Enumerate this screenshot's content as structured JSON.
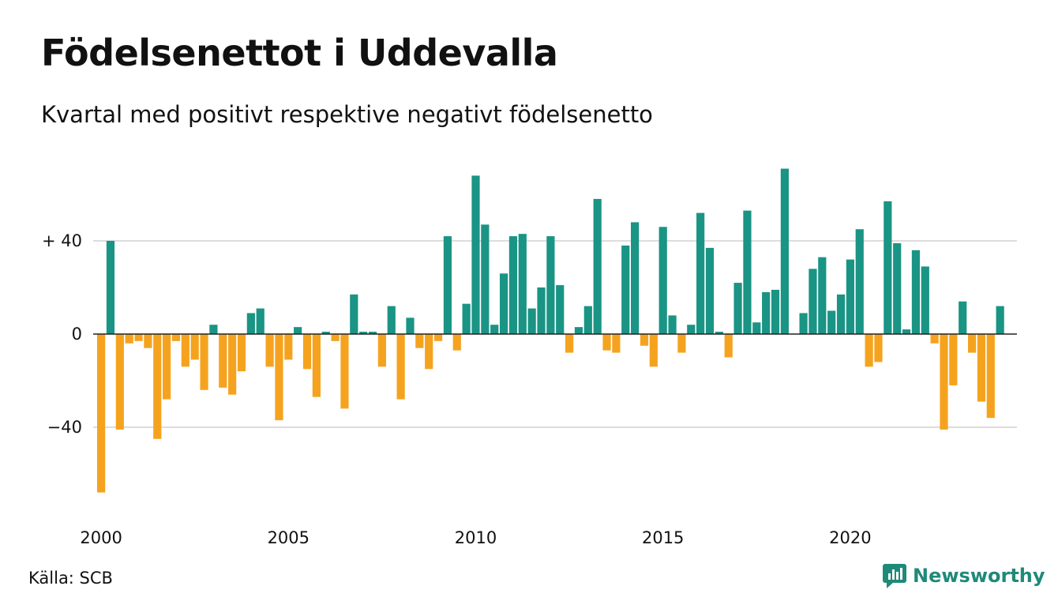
{
  "title": "Födelsenettot i Uddevalla",
  "subtitle": "Kvartal med positivt respektive negativt födelsenetto",
  "source": "Källa: SCB",
  "brand": {
    "name": "Newsworthy",
    "icon": "newsworthy-logo-icon"
  },
  "colors": {
    "positive": "#1a9484",
    "negative": "#f5a31f",
    "grid": "#dddddd",
    "axis": "#222222"
  },
  "chart_data": {
    "type": "bar",
    "x_start": "2000 Q1",
    "x_tick_labels": [
      "2000",
      "2005",
      "2010",
      "2015",
      "2020"
    ],
    "y_tick_labels": [
      "+ 40",
      "0",
      "−40"
    ],
    "y_ticks": [
      40,
      0,
      -40
    ],
    "ylim": [
      -70,
      75
    ],
    "grid": true,
    "values": [
      -68,
      40,
      -41,
      -4,
      -3,
      -6,
      -45,
      -28,
      -3,
      -14,
      -11,
      -24,
      4,
      -23,
      -26,
      -16,
      9,
      11,
      -14,
      -37,
      -11,
      3,
      -15,
      -27,
      1,
      -3,
      -32,
      17,
      1,
      1,
      -14,
      12,
      -28,
      7,
      -6,
      -15,
      -3,
      42,
      -7,
      13,
      68,
      47,
      4,
      26,
      42,
      43,
      11,
      20,
      42,
      21,
      -8,
      3,
      12,
      58,
      -7,
      -8,
      38,
      48,
      -5,
      -14,
      46,
      8,
      -8,
      4,
      52,
      37,
      1,
      -10,
      22,
      53,
      5,
      18,
      19,
      71,
      0,
      9,
      28,
      33,
      10,
      17,
      32,
      45,
      -14,
      -12,
      57,
      39,
      2,
      36,
      29,
      -4,
      -41,
      -22,
      14,
      -8,
      -29,
      -36,
      12
    ]
  }
}
